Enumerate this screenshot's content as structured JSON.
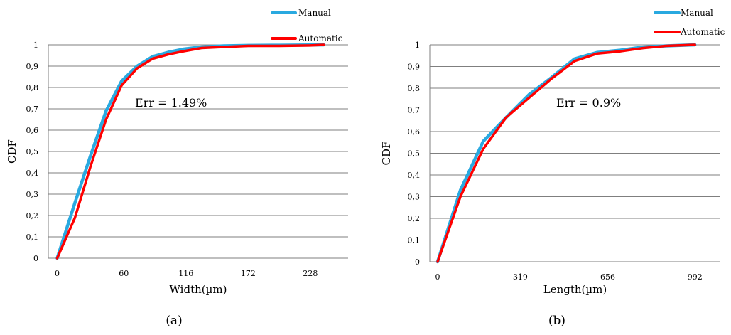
{
  "chart_data": [
    {
      "type": "line",
      "title": "",
      "xlabel": "Width(µm)",
      "ylabel": "CDF",
      "xlim": [
        -8,
        262
      ],
      "ylim": [
        0,
        1
      ],
      "x_ticks": [
        "0",
        "60",
        "116",
        "172",
        "228"
      ],
      "y_ticks": [
        "0",
        "0,1",
        "0,2",
        "0,3",
        "0,4",
        "0,5",
        "0,6",
        "0,7",
        "0,8",
        "0,9",
        "1"
      ],
      "grid": true,
      "legend_position": "top-right",
      "annotation": "Err = 1.49%",
      "caption": "(a)",
      "series": [
        {
          "name": "Manual",
          "color": "#29a9e0",
          "x": [
            0,
            16,
            30,
            44,
            58,
            72,
            86,
            100,
            114,
            130,
            150,
            172,
            200,
            228,
            240
          ],
          "y": [
            0,
            0.26,
            0.48,
            0.69,
            0.83,
            0.9,
            0.945,
            0.965,
            0.98,
            0.99,
            0.995,
            0.997,
            0.998,
            0.999,
            1.0
          ]
        },
        {
          "name": "Automatic",
          "color": "#ff0000",
          "x": [
            0,
            16,
            30,
            44,
            58,
            72,
            86,
            100,
            114,
            130,
            150,
            172,
            200,
            228,
            240
          ],
          "y": [
            0,
            0.19,
            0.43,
            0.65,
            0.81,
            0.89,
            0.935,
            0.955,
            0.97,
            0.985,
            0.99,
            0.995,
            0.995,
            0.997,
            1.0
          ]
        }
      ]
    },
    {
      "type": "line",
      "title": "",
      "xlabel": "Length(µm)",
      "ylabel": "CDF",
      "xlim": [
        -30,
        1090
      ],
      "ylim": [
        0,
        1
      ],
      "x_ticks": [
        "0",
        "319",
        "656",
        "992"
      ],
      "y_ticks": [
        "0",
        "0,1",
        "0,2",
        "0,3",
        "0,4",
        "0,5",
        "0,6",
        "0,7",
        "0,8",
        "0,9",
        "1"
      ],
      "grid": true,
      "legend_position": "top-right",
      "annotation": "Err = 0.9%",
      "caption": "(b)",
      "series": [
        {
          "name": "Manual",
          "color": "#29a9e0",
          "x": [
            0,
            88,
            176,
            264,
            352,
            440,
            528,
            616,
            704,
            792,
            880,
            992
          ],
          "y": [
            0,
            0.33,
            0.555,
            0.665,
            0.77,
            0.85,
            0.935,
            0.965,
            0.975,
            0.99,
            0.995,
            1.0
          ]
        },
        {
          "name": "Automatic",
          "color": "#ff0000",
          "x": [
            0,
            88,
            176,
            264,
            352,
            440,
            528,
            616,
            704,
            792,
            880,
            992
          ],
          "y": [
            0,
            0.3,
            0.52,
            0.665,
            0.755,
            0.845,
            0.925,
            0.96,
            0.97,
            0.985,
            0.995,
            1.0
          ]
        }
      ]
    }
  ]
}
